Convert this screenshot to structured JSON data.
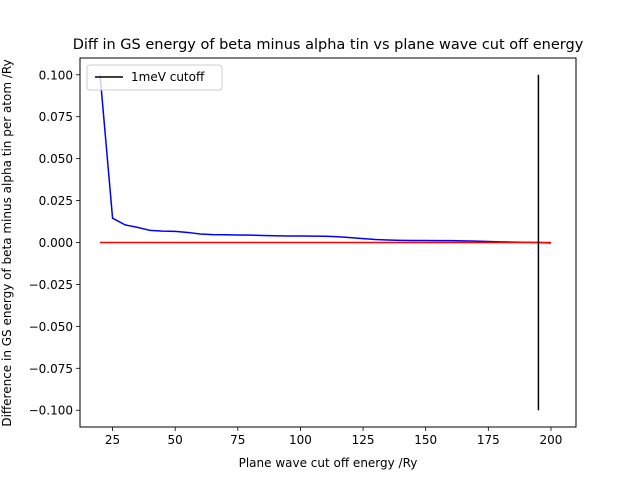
{
  "chart_data": {
    "type": "line",
    "title": "Diff in GS energy of beta minus alpha tin vs plane wave cut off energy",
    "xlabel": "Plane wave cut off energy /Ry",
    "ylabel": "Difference in GS energy of beta minus alpha tin per atom /Ry",
    "xlim": [
      12,
      210
    ],
    "ylim": [
      -0.11,
      0.11
    ],
    "xticks": [
      25,
      50,
      75,
      100,
      125,
      150,
      175,
      200
    ],
    "yticks": [
      0.1,
      0.075,
      0.05,
      0.025,
      0.0,
      -0.025,
      -0.05,
      -0.075,
      -0.1
    ],
    "xtick_labels": [
      "25",
      "50",
      "75",
      "100",
      "125",
      "150",
      "175",
      "200"
    ],
    "ytick_labels": [
      "0.100",
      "0.075",
      "0.050",
      "0.025",
      "0.000",
      "−0.025",
      "−0.050",
      "−0.075",
      "−0.100"
    ],
    "grid": false,
    "legend_position": "top-left",
    "legend": [
      {
        "label": "1meV cutoff",
        "color": "#000000"
      }
    ],
    "series": [
      {
        "color": "#0000ff",
        "x": [
          20,
          25,
          30,
          35,
          40,
          45,
          50,
          55,
          60,
          65,
          70,
          75,
          80,
          85,
          90,
          95,
          100,
          105,
          110,
          115,
          120,
          125,
          130,
          135,
          140,
          145,
          150,
          155,
          160,
          165,
          170,
          175,
          180,
          185,
          190,
          195,
          200
        ],
        "y": [
          0.1,
          0.0145,
          0.0105,
          0.009,
          0.0072,
          0.0068,
          0.0066,
          0.006,
          0.0051,
          0.0047,
          0.0046,
          0.0045,
          0.0044,
          0.0042,
          0.004,
          0.0039,
          0.0039,
          0.0038,
          0.0037,
          0.0034,
          0.0029,
          0.0023,
          0.0018,
          0.0015,
          0.0013,
          0.0012,
          0.0012,
          0.0011,
          0.0011,
          0.001,
          0.0008,
          0.0006,
          0.0004,
          0.0002,
          0.0001,
          0.0,
          -0.0003
        ]
      },
      {
        "color": "#ff0000",
        "x": [
          20,
          200
        ],
        "y": [
          0.0,
          0.0
        ]
      },
      {
        "name": "1meV cutoff",
        "color": "#000000",
        "x": [
          195,
          195
        ],
        "y": [
          0.1,
          -0.1
        ]
      }
    ]
  }
}
